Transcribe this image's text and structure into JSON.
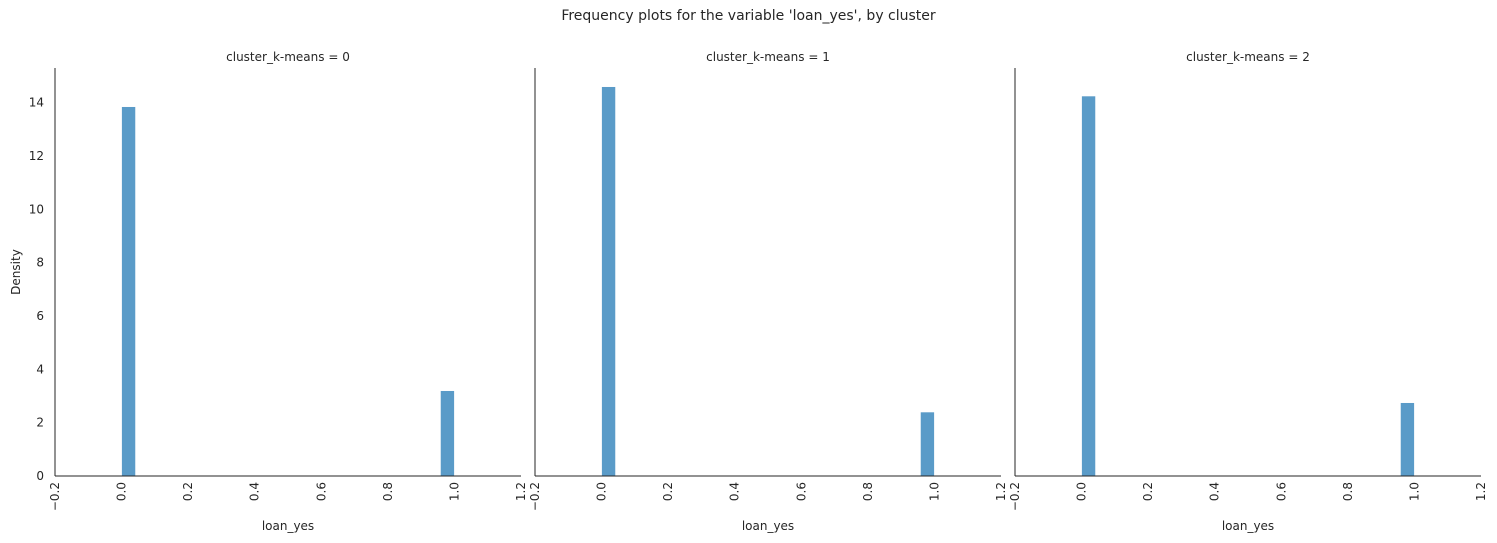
{
  "figure": {
    "title": "Frequency plots for the variable 'loan_yes', by cluster"
  },
  "colors": {
    "bar": "#5a9bc8",
    "axis": "#262626",
    "background": "#ffffff"
  },
  "chart_data": [
    {
      "type": "bar",
      "title": "cluster_k-means = 0",
      "xlabel": "loan_yes",
      "ylabel": "Density",
      "xlim": [
        -0.2,
        1.2
      ],
      "ylim": [
        0,
        15.3
      ],
      "xticks": [
        "-0.2",
        "0.0",
        "0.2",
        "0.4",
        "0.6",
        "0.8",
        "1.0",
        "1.2"
      ],
      "yticks": [
        "0",
        "2",
        "4",
        "6",
        "8",
        "10",
        "12",
        "14"
      ],
      "bins": [
        {
          "x0": 0.0,
          "x1": 0.042,
          "value": 13.85
        },
        {
          "x0": 0.958,
          "x1": 1.0,
          "value": 3.2
        }
      ],
      "grid": false
    },
    {
      "type": "bar",
      "title": "cluster_k-means = 1",
      "xlabel": "loan_yes",
      "ylabel": "",
      "xlim": [
        -0.2,
        1.2
      ],
      "ylim": [
        0,
        15.3
      ],
      "xticks": [
        "-0.2",
        "0.0",
        "0.2",
        "0.4",
        "0.6",
        "0.8",
        "1.0",
        "1.2"
      ],
      "yticks": [],
      "bins": [
        {
          "x0": 0.0,
          "x1": 0.042,
          "value": 14.6
        },
        {
          "x0": 0.958,
          "x1": 1.0,
          "value": 2.4
        }
      ],
      "grid": false
    },
    {
      "type": "bar",
      "title": "cluster_k-means = 2",
      "xlabel": "loan_yes",
      "ylabel": "",
      "xlim": [
        -0.2,
        1.2
      ],
      "ylim": [
        0,
        15.3
      ],
      "xticks": [
        "-0.2",
        "0.0",
        "0.2",
        "0.4",
        "0.6",
        "0.8",
        "1.0",
        "1.2"
      ],
      "yticks": [],
      "bins": [
        {
          "x0": 0.0,
          "x1": 0.042,
          "value": 14.25
        },
        {
          "x0": 0.958,
          "x1": 1.0,
          "value": 2.75
        }
      ],
      "grid": false
    }
  ]
}
